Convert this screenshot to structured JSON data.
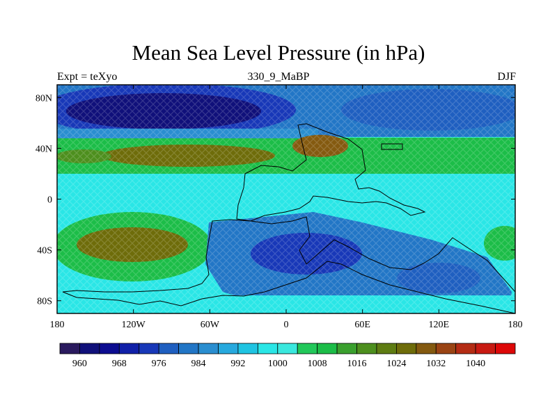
{
  "title": "Mean Sea Level Pressure (in hPa)",
  "subtitle_left": "Expt = teXyo",
  "subtitle_center": "330_9_MaBP",
  "subtitle_right": "DJF",
  "map": {
    "projection": "cylindrical-equidistant",
    "lon_range": [
      -180,
      180
    ],
    "lat_range": [
      -90,
      90
    ],
    "x_tick_labels": [
      "180",
      "120W",
      "60W",
      "0",
      "60E",
      "120E",
      "180"
    ],
    "y_tick_labels": [
      "80N",
      "40N",
      "0",
      "40S",
      "80S"
    ],
    "field": "mean sea level pressure",
    "units": "hPa",
    "features": [
      {
        "region": "northern high latitudes (Pacific sector)",
        "level_hPa": "960-976"
      },
      {
        "region": "northern high latitudes (Atlantic/Europe sector)",
        "level_hPa": "980-992"
      },
      {
        "region": "northern subtropics band ~30N",
        "level_hPa": "1008-1024"
      },
      {
        "region": "southern subtropics over Pacific ~35S",
        "level_hPa": "1012-1024"
      },
      {
        "region": "southern mid-latitudes off continent",
        "level_hPa": "976-992"
      },
      {
        "region": "equatorial band",
        "level_hPa": "1000-1008"
      }
    ]
  },
  "colorbar": {
    "labels": [
      "960",
      "968",
      "976",
      "984",
      "992",
      "1000",
      "1008",
      "1016",
      "1024",
      "1032",
      "1040"
    ],
    "levels": [
      956,
      960,
      964,
      968,
      972,
      976,
      980,
      984,
      988,
      992,
      996,
      1000,
      1004,
      1008,
      1012,
      1016,
      1020,
      1024,
      1028,
      1032,
      1036,
      1040,
      1044
    ],
    "colors": [
      "#2a1a5e",
      "#10107a",
      "#0c0c90",
      "#1020a8",
      "#1838b8",
      "#1f5fc0",
      "#2276c6",
      "#2a8ed0",
      "#27a9de",
      "#1fc4e2",
      "#2ae6e6",
      "#3ae8de",
      "#22c85a",
      "#1cbd48",
      "#3aa02e",
      "#4d8f1e",
      "#5e7c12",
      "#6e6c0a",
      "#845a10",
      "#9a4414",
      "#b42c14",
      "#c81a12",
      "#dd0808"
    ]
  }
}
